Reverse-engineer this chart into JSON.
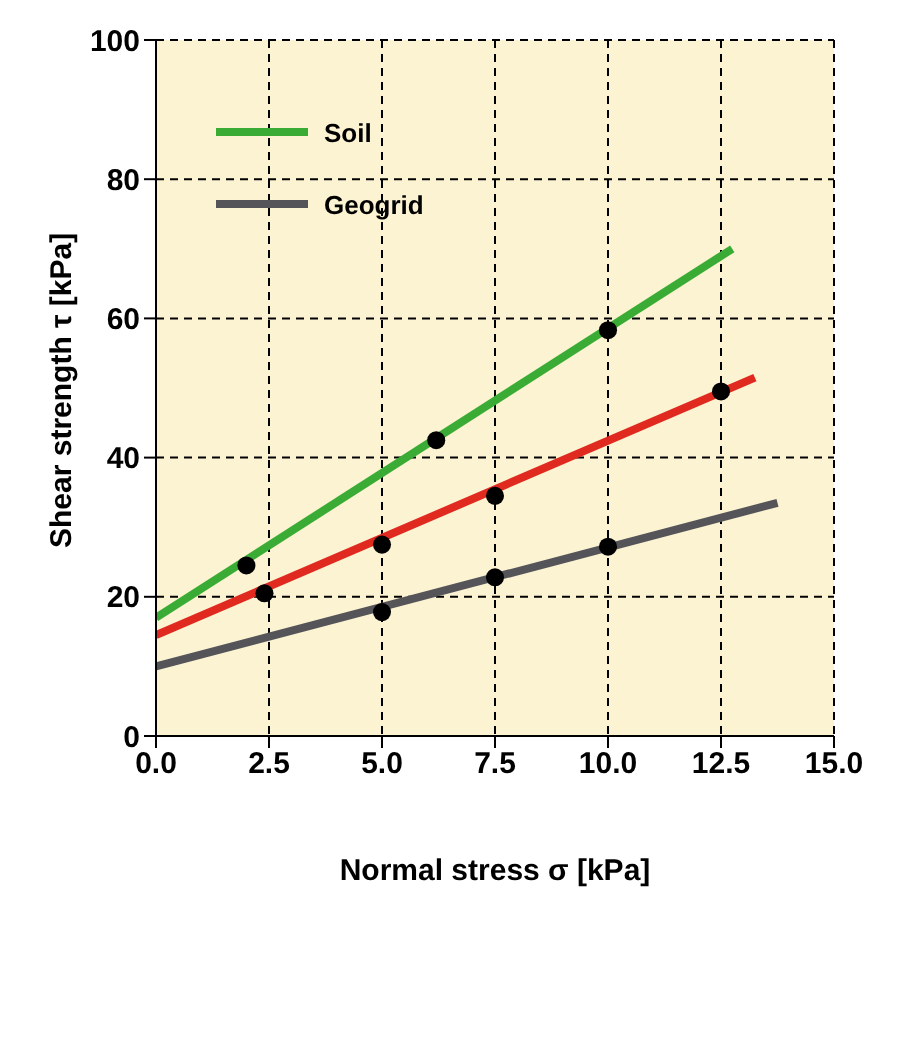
{
  "chart_data": {
    "type": "line",
    "xlabel": "Normal stress σ  [kPa]",
    "ylabel": "Shear strength τ [kPa]",
    "series": [
      {
        "name": "Soil",
        "color": "#3aac35",
        "x": [
          0,
          12.75
        ],
        "values": [
          17,
          70
        ],
        "marker": "none"
      },
      {
        "color": "#e02a20",
        "x": [
          0,
          13.25
        ],
        "values": [
          14.5,
          51.5
        ],
        "marker": "none"
      },
      {
        "name": "Geogrid",
        "color": "#555559",
        "x": [
          0,
          13.75
        ],
        "values": [
          10,
          33.5
        ],
        "marker": "none"
      },
      {
        "type": "scatter",
        "color": "#000000",
        "x": [
          2,
          6.2,
          10
        ],
        "values": [
          24.5,
          42.5,
          58.3
        ],
        "marker": "circle"
      },
      {
        "type": "scatter",
        "color": "#000000",
        "x": [
          2.4,
          5,
          7.5,
          12.5
        ],
        "values": [
          20.5,
          27.5,
          34.5,
          49.5
        ],
        "marker": "circle"
      },
      {
        "type": "scatter",
        "color": "#000000",
        "x": [
          5,
          7.5,
          10
        ],
        "values": [
          17.8,
          22.8,
          27.2
        ],
        "marker": "circle"
      }
    ],
    "xlim": [
      0,
      15
    ],
    "xticks": [
      {
        "value": 0,
        "label": "0.0"
      },
      2.5,
      {
        "value": 5,
        "label": "5.0"
      },
      7.5,
      {
        "value": 10,
        "label": "10.0"
      },
      12.5,
      {
        "value": 15,
        "label": "15.0"
      }
    ],
    "ylim": [
      0,
      100
    ],
    "yticks": [
      0,
      20,
      40,
      60,
      80,
      100
    ],
    "grid": true,
    "legend": "top left",
    "line_style": "solid"
  }
}
